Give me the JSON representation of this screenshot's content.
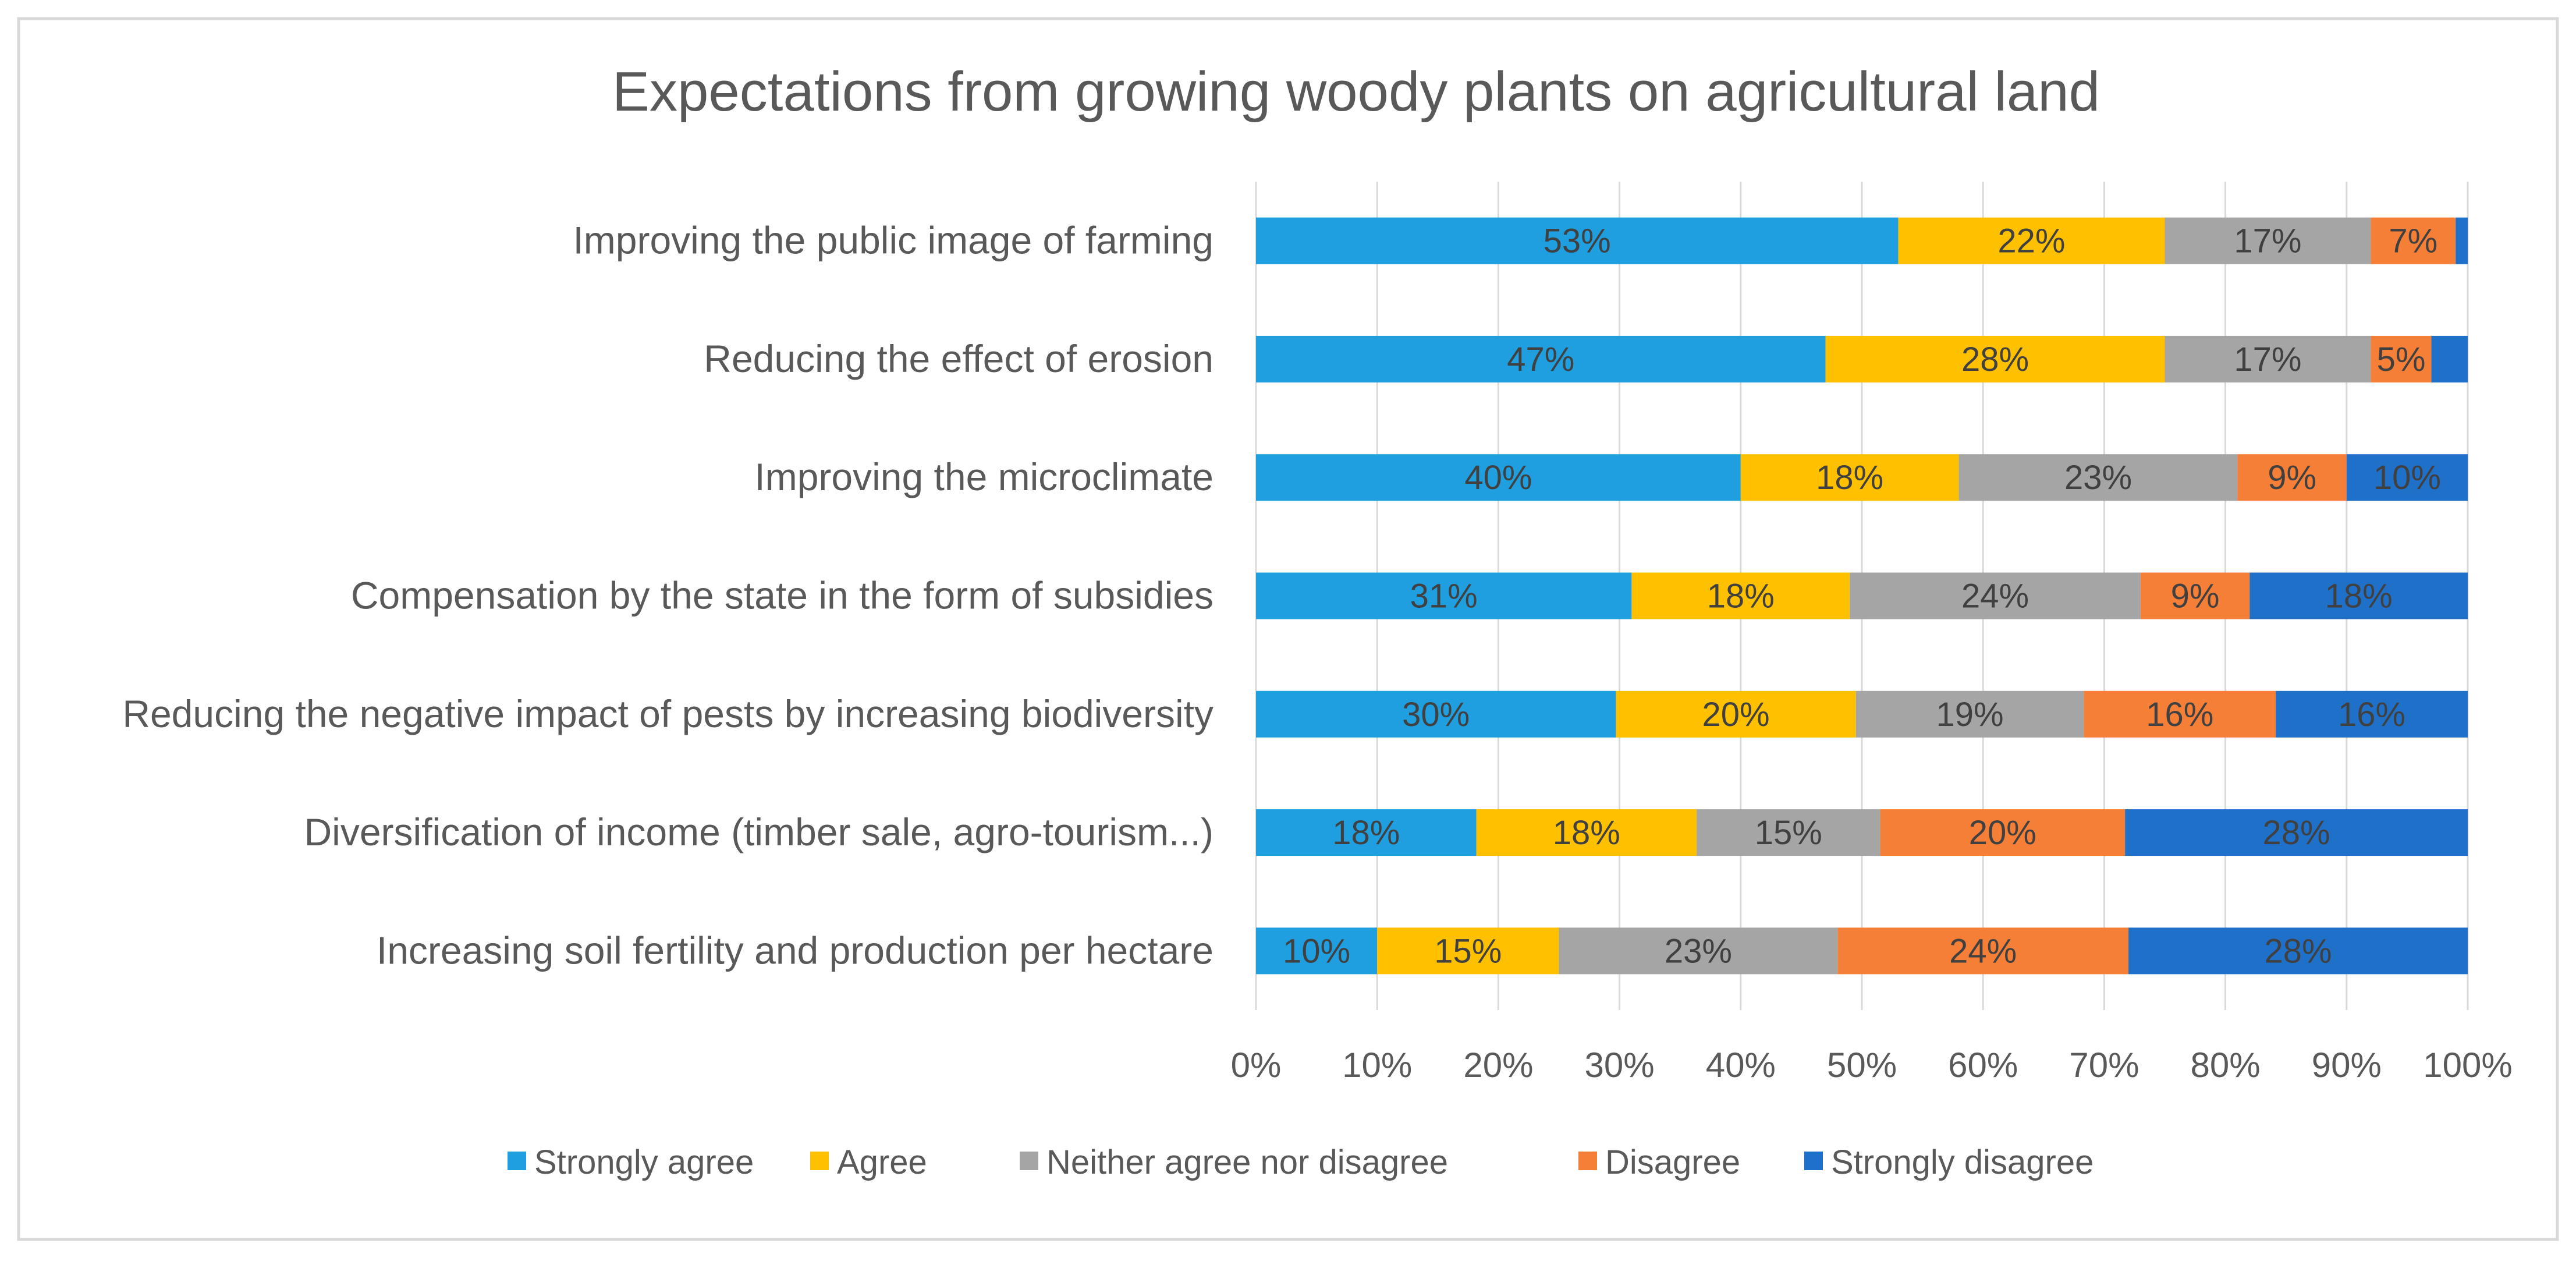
{
  "chart_data": {
    "type": "bar",
    "orientation": "horizontal",
    "stacked": "percent",
    "title": "Expectations from growing woody plants on agricultural land",
    "xlabel": "",
    "ylabel": "",
    "xlim": [
      0,
      100
    ],
    "grid": true,
    "legend_position": "bottom",
    "categories": [
      "Improving the public image of farming",
      "Reducing the effect of erosion",
      "Improving the microclimate",
      "Compensation by the state in the form of subsidies",
      "Reducing the negative impact of pests by increasing biodiversity",
      "Diversification of income (timber sale, agro-tourism...)",
      "Increasing soil fertility and production per hectare"
    ],
    "x_ticks": [
      "0%",
      "10%",
      "20%",
      "30%",
      "40%",
      "50%",
      "60%",
      "70%",
      "80%",
      "90%",
      "100%"
    ],
    "series": [
      {
        "name": "Strongly agree",
        "color": "#1f9fe0",
        "values": [
          53,
          47,
          40,
          31,
          30,
          18,
          10
        ],
        "labels": [
          "53%",
          "47%",
          "40%",
          "31%",
          "30%",
          "18%",
          "10%"
        ]
      },
      {
        "name": "Agree",
        "color": "#ffc000",
        "values": [
          22,
          28,
          18,
          18,
          20,
          18,
          15
        ],
        "labels": [
          "22%",
          "28%",
          "18%",
          "18%",
          "20%",
          "18%",
          "15%"
        ]
      },
      {
        "name": "Neither agree nor disagree",
        "color": "#a5a5a5",
        "values": [
          17,
          17,
          23,
          24,
          19,
          15,
          23
        ],
        "labels": [
          "17%",
          "17%",
          "23%",
          "24%",
          "19%",
          "15%",
          "23%"
        ]
      },
      {
        "name": "Disagree",
        "color": "#f57f36",
        "values": [
          7,
          5,
          9,
          9,
          16,
          20,
          24
        ],
        "labels": [
          "7%",
          "5%",
          "9%",
          "9%",
          "16%",
          "20%",
          "24%"
        ]
      },
      {
        "name": "Strongly disagree",
        "color": "#1f70c8",
        "values": [
          1,
          3,
          10,
          18,
          16,
          28,
          28
        ],
        "labels": [
          "",
          "",
          "10%",
          "18%",
          "16%",
          "28%",
          "28%"
        ]
      }
    ]
  }
}
